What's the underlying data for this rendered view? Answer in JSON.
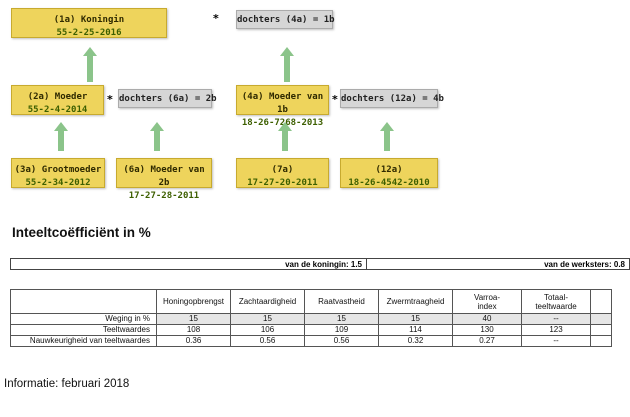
{
  "pedigree": {
    "queen": {
      "code": "(1a) Koningin",
      "id": "55-2-25-2016"
    },
    "queen_daughters": "dochters (4a) = 1b",
    "mother": {
      "code": "(2a) Moeder",
      "id": "55-2-4-2014"
    },
    "mother_daughters": "dochters (6a) = 2b",
    "mother_of_1b": {
      "code": "(4a) Moeder van 1b",
      "id": "18-26-7268-2013"
    },
    "mother_of_1b_daughters": "dochters (12a) = 4b",
    "grandmother": {
      "code": "(3a) Grootmoeder",
      "id": "55-2-34-2012"
    },
    "mother_of_2b": {
      "code": "(6a) Moeder van 2b",
      "id": "17-27-28-2011"
    },
    "box_7a": {
      "code": "(7a)",
      "id": "17-27-20-2011"
    },
    "box_12a": {
      "code": "(12a)",
      "id": "18-26-4542-2010"
    },
    "star": "*"
  },
  "inbreeding": {
    "title": "Inteeltcoëfficiënt in %",
    "queen": "van de koningin: 1.5",
    "workers": "van de werksters: 0.8"
  },
  "breeding_table": {
    "columns": [
      "Honingopbrengst",
      "Zachtaardigheid",
      "Raatvastheid",
      "Zwermtraagheid",
      "Varroa-index",
      "Totaal-teeltwaarde"
    ],
    "column_lines": [
      [
        "Honingopbrengst"
      ],
      [
        "Zachtaardigheid"
      ],
      [
        "Raatvastheid"
      ],
      [
        "Zwermtraagheid"
      ],
      [
        "Varroa-",
        "index"
      ],
      [
        "Totaal-",
        "teeltwaarde"
      ]
    ],
    "rows": [
      {
        "label": "Weging in %",
        "values": [
          "15",
          "15",
          "15",
          "15",
          "40",
          "--"
        ]
      },
      {
        "label": "Teeltwaardes",
        "values": [
          "108",
          "106",
          "109",
          "114",
          "130",
          "123"
        ]
      },
      {
        "label": "Nauwkeurigheid van teeltwaardes",
        "values": [
          "0.36",
          "0.56",
          "0.56",
          "0.32",
          "0.27",
          "--"
        ]
      }
    ]
  },
  "footer": {
    "info": "Informatie: februari 2018"
  },
  "colors": {
    "gold_box": "#eed45c",
    "grey_box": "#d6d6d6",
    "arrow_green": "#8bc48a"
  }
}
